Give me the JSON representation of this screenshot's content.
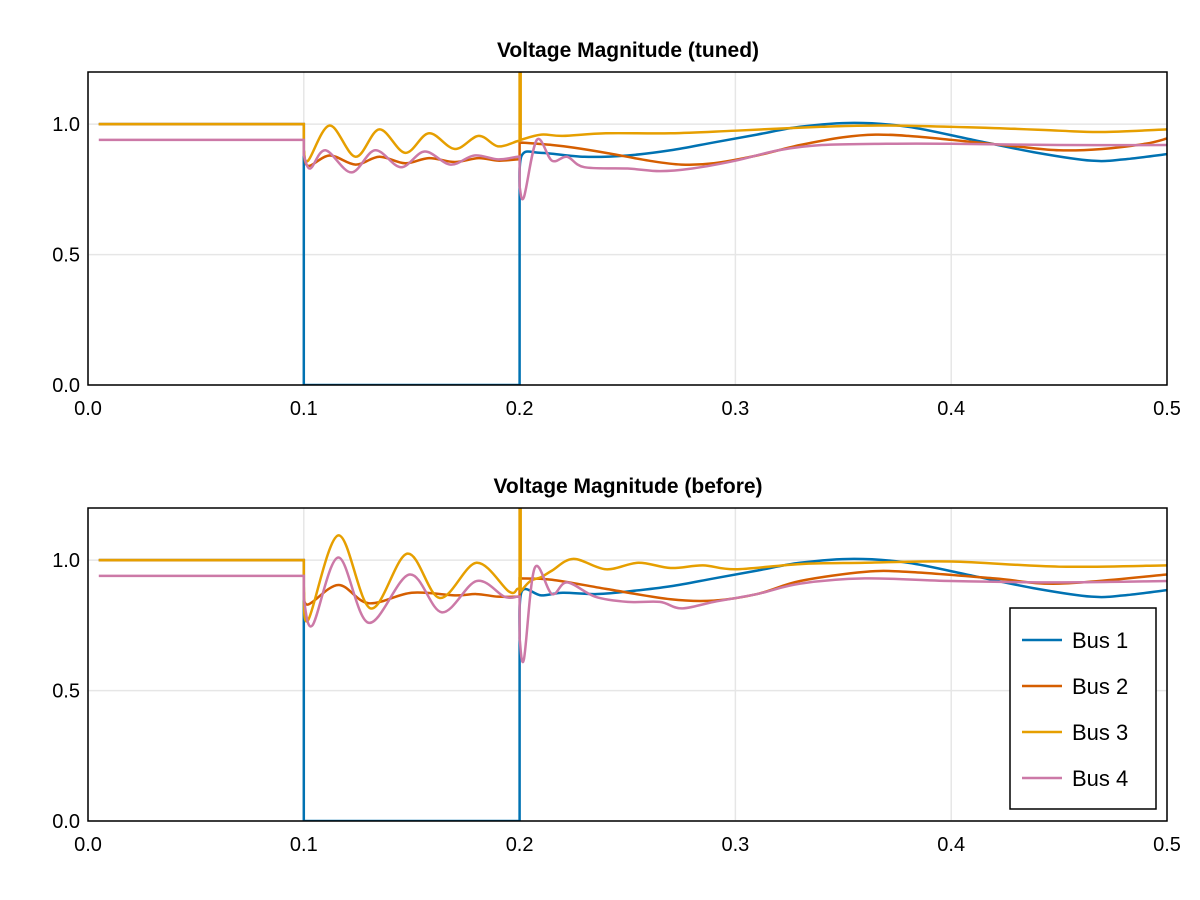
{
  "colors": {
    "Bus 1": "#0072b2",
    "Bus 2": "#d55e00",
    "Bus 3": "#e69f00",
    "Bus 4": "#cc79a7"
  },
  "chart_data": [
    {
      "type": "line",
      "title": "Voltage Magnitude (tuned)",
      "xlim": [
        0,
        0.5
      ],
      "ylim": [
        0,
        1.2
      ],
      "grid": true,
      "xticks": [
        "0.0",
        "0.1",
        "0.2",
        "0.3",
        "0.4",
        "0.5"
      ],
      "yticks": [
        "0.0",
        "0.5",
        "1.0"
      ],
      "series": [
        {
          "name": "Bus 1",
          "points": [
            [
              0.005,
              1
            ],
            [
              0.1,
              1
            ],
            [
              0.1,
              0
            ],
            [
              0.2,
              0
            ],
            [
              0.2,
              0.73
            ],
            [
              0.201,
              0.88
            ],
            [
              0.21,
              0.89
            ],
            [
              0.23,
              0.875
            ],
            [
              0.25,
              0.88
            ],
            [
              0.27,
              0.9
            ],
            [
              0.29,
              0.93
            ],
            [
              0.31,
              0.96
            ],
            [
              0.33,
              0.99
            ],
            [
              0.355,
              1.005
            ],
            [
              0.38,
              0.99
            ],
            [
              0.41,
              0.94
            ],
            [
              0.44,
              0.89
            ],
            [
              0.465,
              0.86
            ],
            [
              0.48,
              0.865
            ],
            [
              0.5,
              0.885
            ]
          ]
        },
        {
          "name": "Bus 2",
          "points": [
            [
              0.005,
              1
            ],
            [
              0.1,
              1
            ],
            [
              0.1,
              0.9
            ],
            [
              0.102,
              0.84
            ],
            [
              0.112,
              0.88
            ],
            [
              0.124,
              0.845
            ],
            [
              0.135,
              0.875
            ],
            [
              0.147,
              0.85
            ],
            [
              0.158,
              0.87
            ],
            [
              0.17,
              0.855
            ],
            [
              0.181,
              0.87
            ],
            [
              0.19,
              0.86
            ],
            [
              0.199,
              0.865
            ],
            [
              0.2,
              0.865
            ],
            [
              0.2,
              0.93
            ],
            [
              0.215,
              0.92
            ],
            [
              0.225,
              0.91
            ],
            [
              0.24,
              0.89
            ],
            [
              0.26,
              0.86
            ],
            [
              0.275,
              0.845
            ],
            [
              0.29,
              0.85
            ],
            [
              0.31,
              0.88
            ],
            [
              0.33,
              0.92
            ],
            [
              0.35,
              0.95
            ],
            [
              0.365,
              0.96
            ],
            [
              0.38,
              0.955
            ],
            [
              0.4,
              0.94
            ],
            [
              0.43,
              0.915
            ],
            [
              0.45,
              0.9
            ],
            [
              0.47,
              0.905
            ],
            [
              0.49,
              0.925
            ],
            [
              0.5,
              0.945
            ]
          ]
        },
        {
          "name": "Bus 3",
          "points": [
            [
              0.005,
              1
            ],
            [
              0.1,
              1
            ],
            [
              0.1,
              0.9
            ],
            [
              0.102,
              0.86
            ],
            [
              0.112,
              0.995
            ],
            [
              0.124,
              0.875
            ],
            [
              0.135,
              0.98
            ],
            [
              0.147,
              0.89
            ],
            [
              0.158,
              0.965
            ],
            [
              0.17,
              0.905
            ],
            [
              0.181,
              0.955
            ],
            [
              0.19,
              0.915
            ],
            [
              0.199,
              0.935
            ],
            [
              0.2,
              0.935
            ],
            [
              0.2,
              1.2
            ],
            [
              0.2005,
              1.2
            ],
            [
              0.2005,
              0.94
            ],
            [
              0.21,
              0.96
            ],
            [
              0.22,
              0.955
            ],
            [
              0.24,
              0.965
            ],
            [
              0.27,
              0.965
            ],
            [
              0.3,
              0.975
            ],
            [
              0.34,
              0.99
            ],
            [
              0.37,
              0.995
            ],
            [
              0.42,
              0.985
            ],
            [
              0.45,
              0.975
            ],
            [
              0.47,
              0.97
            ],
            [
              0.5,
              0.98
            ]
          ]
        },
        {
          "name": "Bus 4",
          "points": [
            [
              0.005,
              0.94
            ],
            [
              0.1,
              0.94
            ],
            [
              0.1,
              0.88
            ],
            [
              0.103,
              0.83
            ],
            [
              0.11,
              0.9
            ],
            [
              0.122,
              0.815
            ],
            [
              0.133,
              0.9
            ],
            [
              0.145,
              0.835
            ],
            [
              0.156,
              0.895
            ],
            [
              0.168,
              0.845
            ],
            [
              0.179,
              0.88
            ],
            [
              0.19,
              0.865
            ],
            [
              0.199,
              0.875
            ],
            [
              0.2,
              0.875
            ],
            [
              0.2,
              0.76
            ],
            [
              0.202,
              0.72
            ],
            [
              0.208,
              0.94
            ],
            [
              0.215,
              0.86
            ],
            [
              0.222,
              0.875
            ],
            [
              0.23,
              0.835
            ],
            [
              0.25,
              0.83
            ],
            [
              0.265,
              0.82
            ],
            [
              0.28,
              0.83
            ],
            [
              0.3,
              0.86
            ],
            [
              0.32,
              0.9
            ],
            [
              0.34,
              0.92
            ],
            [
              0.37,
              0.925
            ],
            [
              0.4,
              0.925
            ],
            [
              0.45,
              0.92
            ],
            [
              0.5,
              0.92
            ]
          ]
        }
      ]
    },
    {
      "type": "line",
      "title": "Voltage Magnitude (before)",
      "xlim": [
        0,
        0.5
      ],
      "ylim": [
        0,
        1.2
      ],
      "grid": true,
      "xticks": [
        "0.0",
        "0.1",
        "0.2",
        "0.3",
        "0.4",
        "0.5"
      ],
      "yticks": [
        "0.0",
        "0.5",
        "1.0"
      ],
      "legend": "bottom-right",
      "series": [
        {
          "name": "Bus 1",
          "points": [
            [
              0.005,
              1
            ],
            [
              0.1,
              1
            ],
            [
              0.1,
              0
            ],
            [
              0.2,
              0
            ],
            [
              0.2,
              0.7
            ],
            [
              0.201,
              0.88
            ],
            [
              0.21,
              0.865
            ],
            [
              0.22,
              0.875
            ],
            [
              0.235,
              0.87
            ],
            [
              0.25,
              0.88
            ],
            [
              0.27,
              0.9
            ],
            [
              0.29,
              0.93
            ],
            [
              0.31,
              0.96
            ],
            [
              0.33,
              0.99
            ],
            [
              0.355,
              1.005
            ],
            [
              0.38,
              0.99
            ],
            [
              0.41,
              0.94
            ],
            [
              0.44,
              0.89
            ],
            [
              0.465,
              0.86
            ],
            [
              0.48,
              0.865
            ],
            [
              0.5,
              0.885
            ]
          ]
        },
        {
          "name": "Bus 2",
          "points": [
            [
              0.005,
              1
            ],
            [
              0.1,
              1
            ],
            [
              0.1,
              0.88
            ],
            [
              0.102,
              0.83
            ],
            [
              0.116,
              0.905
            ],
            [
              0.13,
              0.835
            ],
            [
              0.15,
              0.875
            ],
            [
              0.17,
              0.865
            ],
            [
              0.18,
              0.87
            ],
            [
              0.19,
              0.86
            ],
            [
              0.199,
              0.86
            ],
            [
              0.2,
              0.86
            ],
            [
              0.2,
              0.93
            ],
            [
              0.215,
              0.925
            ],
            [
              0.24,
              0.89
            ],
            [
              0.27,
              0.85
            ],
            [
              0.29,
              0.845
            ],
            [
              0.31,
              0.87
            ],
            [
              0.33,
              0.92
            ],
            [
              0.36,
              0.955
            ],
            [
              0.38,
              0.955
            ],
            [
              0.42,
              0.93
            ],
            [
              0.45,
              0.91
            ],
            [
              0.5,
              0.945
            ]
          ]
        },
        {
          "name": "Bus 3",
          "points": [
            [
              0.005,
              1
            ],
            [
              0.1,
              1
            ],
            [
              0.1,
              0.9
            ],
            [
              0.102,
              0.77
            ],
            [
              0.116,
              1.095
            ],
            [
              0.131,
              0.815
            ],
            [
              0.148,
              1.025
            ],
            [
              0.163,
              0.855
            ],
            [
              0.18,
              0.99
            ],
            [
              0.195,
              0.88
            ],
            [
              0.199,
              0.89
            ],
            [
              0.2,
              0.89
            ],
            [
              0.2,
              1.2
            ],
            [
              0.2005,
              1.2
            ],
            [
              0.2005,
              0.88
            ],
            [
              0.205,
              0.92
            ],
            [
              0.21,
              0.935
            ],
            [
              0.215,
              0.96
            ],
            [
              0.225,
              1.005
            ],
            [
              0.24,
              0.965
            ],
            [
              0.255,
              0.99
            ],
            [
              0.27,
              0.97
            ],
            [
              0.285,
              0.98
            ],
            [
              0.3,
              0.965
            ],
            [
              0.33,
              0.985
            ],
            [
              0.36,
              0.99
            ],
            [
              0.4,
              0.995
            ],
            [
              0.45,
              0.975
            ],
            [
              0.5,
              0.98
            ]
          ]
        },
        {
          "name": "Bus 4",
          "points": [
            [
              0.005,
              0.94
            ],
            [
              0.1,
              0.94
            ],
            [
              0.1,
              0.85
            ],
            [
              0.104,
              0.75
            ],
            [
              0.116,
              1.01
            ],
            [
              0.13,
              0.76
            ],
            [
              0.149,
              0.945
            ],
            [
              0.164,
              0.8
            ],
            [
              0.18,
              0.92
            ],
            [
              0.193,
              0.86
            ],
            [
              0.199,
              0.86
            ],
            [
              0.2,
              0.86
            ],
            [
              0.2,
              0.7
            ],
            [
              0.202,
              0.62
            ],
            [
              0.207,
              0.97
            ],
            [
              0.215,
              0.87
            ],
            [
              0.222,
              0.915
            ],
            [
              0.235,
              0.86
            ],
            [
              0.25,
              0.84
            ],
            [
              0.265,
              0.84
            ],
            [
              0.275,
              0.815
            ],
            [
              0.29,
              0.84
            ],
            [
              0.31,
              0.87
            ],
            [
              0.33,
              0.91
            ],
            [
              0.36,
              0.93
            ],
            [
              0.4,
              0.92
            ],
            [
              0.45,
              0.915
            ],
            [
              0.5,
              0.92
            ]
          ]
        }
      ]
    }
  ]
}
